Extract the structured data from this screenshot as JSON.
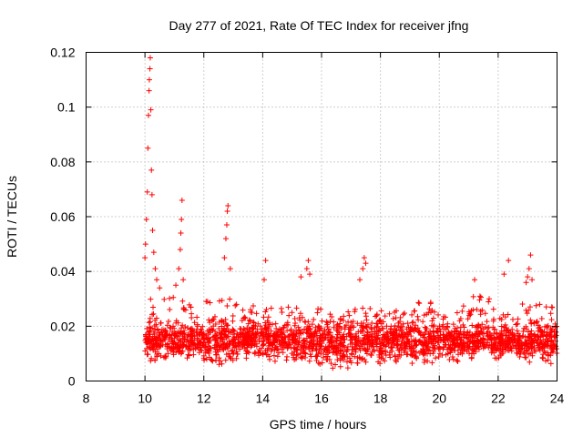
{
  "chart_data": {
    "type": "scatter",
    "title": "Day 277 of 2021, Rate Of TEC Index for receiver jfng",
    "xlabel": "GPS time / hours",
    "ylabel": "ROTI / TECUs",
    "xlim": [
      8,
      24
    ],
    "ylim": [
      0,
      0.12
    ],
    "x_ticks": [
      8,
      10,
      12,
      14,
      16,
      18,
      20,
      22,
      24
    ],
    "x_tick_labels": [
      "8",
      "10",
      "12",
      "14",
      "16",
      "18",
      "20",
      "22",
      "24"
    ],
    "y_ticks": [
      0,
      0.02,
      0.04,
      0.06,
      0.08,
      0.1,
      0.12
    ],
    "y_tick_labels": [
      "0",
      "0.02",
      "0.04",
      "0.06",
      "0.08",
      "0.1",
      "0.12"
    ],
    "grid": true,
    "marker": "+",
    "marker_color": "#ff0000",
    "series": [
      {
        "name": "ROTI",
        "description": "dense band of ROTI values between ~0.005 and ~0.03 TECU/min from 10 h to 24 h, with spikes up to 0.118 near 10.1 h",
        "points": [
          [
            10.0,
            0.045
          ],
          [
            10.02,
            0.05
          ],
          [
            10.05,
            0.059
          ],
          [
            10.08,
            0.069
          ],
          [
            10.1,
            0.085
          ],
          [
            10.12,
            0.097
          ],
          [
            10.14,
            0.106
          ],
          [
            10.15,
            0.11
          ],
          [
            10.17,
            0.114
          ],
          [
            10.18,
            0.118
          ],
          [
            10.2,
            0.099
          ],
          [
            10.22,
            0.077
          ],
          [
            10.24,
            0.068
          ],
          [
            10.26,
            0.055
          ],
          [
            10.3,
            0.047
          ],
          [
            10.35,
            0.041
          ],
          [
            10.4,
            0.037
          ],
          [
            10.5,
            0.034
          ],
          [
            11.05,
            0.035
          ],
          [
            11.15,
            0.041
          ],
          [
            11.2,
            0.048
          ],
          [
            11.22,
            0.054
          ],
          [
            11.24,
            0.059
          ],
          [
            11.26,
            0.066
          ],
          [
            11.3,
            0.037
          ],
          [
            12.7,
            0.045
          ],
          [
            12.75,
            0.052
          ],
          [
            12.78,
            0.057
          ],
          [
            12.8,
            0.062
          ],
          [
            12.82,
            0.064
          ],
          [
            12.9,
            0.041
          ],
          [
            14.05,
            0.037
          ],
          [
            14.1,
            0.044
          ],
          [
            15.3,
            0.038
          ],
          [
            15.5,
            0.041
          ],
          [
            15.55,
            0.044
          ],
          [
            15.6,
            0.039
          ],
          [
            17.3,
            0.037
          ],
          [
            17.4,
            0.041
          ],
          [
            17.45,
            0.045
          ],
          [
            17.5,
            0.043
          ],
          [
            21.2,
            0.037
          ],
          [
            22.2,
            0.039
          ],
          [
            22.35,
            0.044
          ],
          [
            22.95,
            0.036
          ],
          [
            23.0,
            0.038
          ],
          [
            23.05,
            0.041
          ],
          [
            23.1,
            0.046
          ],
          [
            23.15,
            0.037
          ]
        ],
        "band": {
          "x_start": 10.0,
          "x_end": 24.0,
          "segments": [
            {
              "x": [
                10.0,
                11.0
              ],
              "y_low": 0.007,
              "y_high": 0.032
            },
            {
              "x": [
                11.0,
                12.0
              ],
              "y_low": 0.008,
              "y_high": 0.03
            },
            {
              "x": [
                12.0,
                13.0
              ],
              "y_low": 0.005,
              "y_high": 0.031
            },
            {
              "x": [
                13.0,
                14.0
              ],
              "y_low": 0.008,
              "y_high": 0.028
            },
            {
              "x": [
                14.0,
                15.0
              ],
              "y_low": 0.007,
              "y_high": 0.027
            },
            {
              "x": [
                15.0,
                16.0
              ],
              "y_low": 0.006,
              "y_high": 0.028
            },
            {
              "x": [
                16.0,
                17.0
              ],
              "y_low": 0.004,
              "y_high": 0.026
            },
            {
              "x": [
                17.0,
                18.0
              ],
              "y_low": 0.006,
              "y_high": 0.028
            },
            {
              "x": [
                18.0,
                19.0
              ],
              "y_low": 0.007,
              "y_high": 0.027
            },
            {
              "x": [
                19.0,
                20.0
              ],
              "y_low": 0.006,
              "y_high": 0.029
            },
            {
              "x": [
                20.0,
                21.0
              ],
              "y_low": 0.007,
              "y_high": 0.03
            },
            {
              "x": [
                21.0,
                22.0
              ],
              "y_low": 0.008,
              "y_high": 0.031
            },
            {
              "x": [
                22.0,
                23.0
              ],
              "y_low": 0.008,
              "y_high": 0.031
            },
            {
              "x": [
                23.0,
                24.0
              ],
              "y_low": 0.006,
              "y_high": 0.028
            }
          ],
          "typical_center": 0.015
        }
      }
    ]
  }
}
